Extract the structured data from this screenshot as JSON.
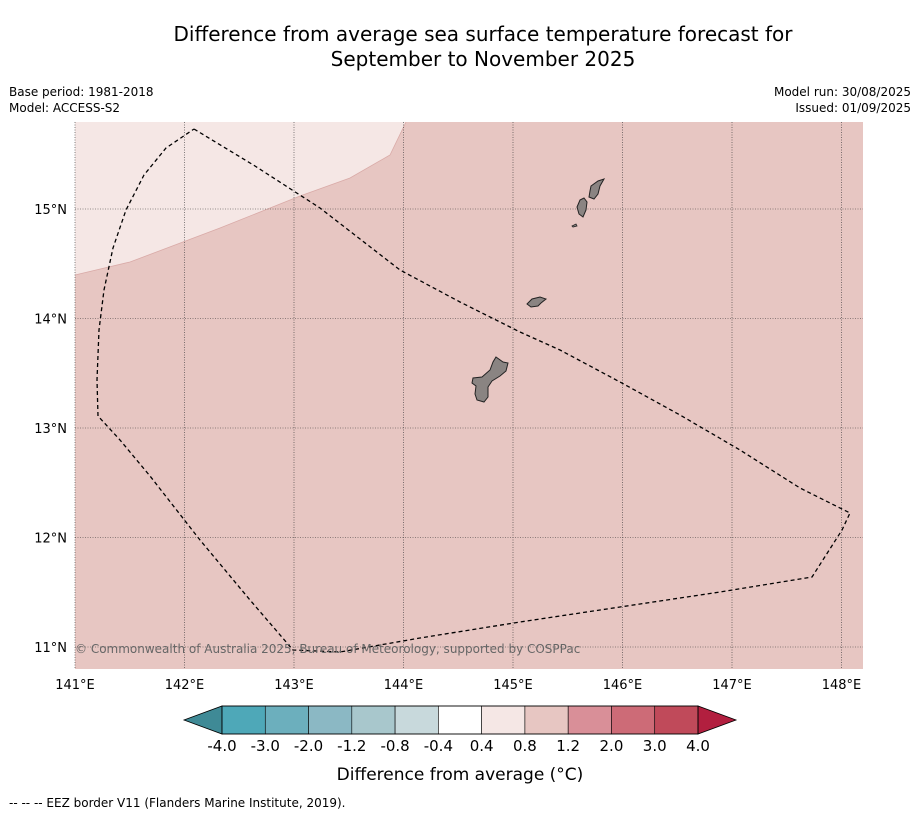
{
  "title_line1": "Difference from average sea surface temperature forecast for",
  "title_line2": "September to November 2025",
  "meta_left": {
    "base_period": "Base period: 1981-2018",
    "model": "Model: ACCESS-S2"
  },
  "meta_right": {
    "model_run": "Model run: 30/08/2025",
    "issued": "Issued: 01/09/2025"
  },
  "map": {
    "lon_range": [
      141.0,
      148.2
    ],
    "lat_range": [
      10.8,
      15.8
    ],
    "lat_labels": [
      {
        "value": 15,
        "label": "15°N"
      },
      {
        "value": 14,
        "label": "14°N"
      },
      {
        "value": 13,
        "label": "13°N"
      },
      {
        "value": 12,
        "label": "12°N"
      },
      {
        "value": 11,
        "label": "11°N"
      }
    ],
    "lon_labels": [
      {
        "value": 141,
        "label": "141°E"
      },
      {
        "value": 142,
        "label": "142°E"
      },
      {
        "value": 143,
        "label": "143°E"
      },
      {
        "value": 144,
        "label": "144°E"
      },
      {
        "value": 145,
        "label": "145°E"
      },
      {
        "value": 146,
        "label": "146°E"
      },
      {
        "value": 147,
        "label": "147°E"
      },
      {
        "value": 148,
        "label": "148°E"
      }
    ],
    "background_anomaly_class": "0.8 to 1.2",
    "background_color": "#e7c6c2",
    "northwest_anomaly_class": "0.4 to 0.8",
    "northwest_color": "#f5e7e5",
    "land_color": "#8a8482",
    "copyright": "© Commonwealth of Australia 2025, Bureau of Meteorology, supported by COSPPac"
  },
  "colorbar": {
    "ticks": [
      "-4.0",
      "-3.0",
      "-2.0",
      "-1.2",
      "-0.8",
      "-0.4",
      "0.4",
      "0.8",
      "1.2",
      "2.0",
      "3.0",
      "4.0"
    ],
    "colors": [
      "#4ea8b8",
      "#6cafbd",
      "#8bb8c4",
      "#a8c7cc",
      "#c8d9dc",
      "#ffffff",
      "#f5e7e5",
      "#e7c6c2",
      "#d98f98",
      "#cd6b77",
      "#c04a5a"
    ],
    "low_extend_color": "#3f8a96",
    "high_extend_color": "#b21f3f",
    "label": "Difference from average (°C)"
  },
  "footnote": "-- -- -- EEZ border V11 (Flanders Marine Institute, 2019)."
}
